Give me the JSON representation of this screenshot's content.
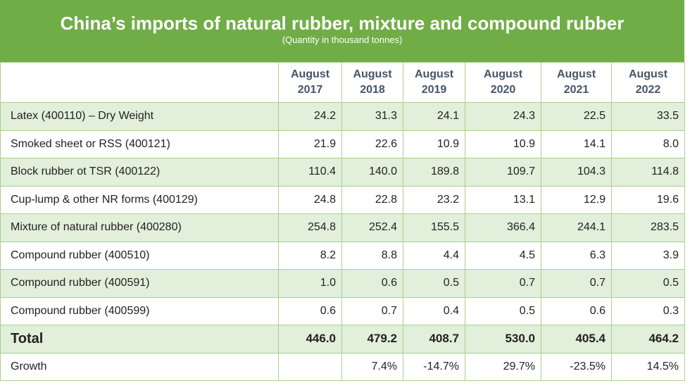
{
  "header": {
    "title": "China’s imports of natural rubber, mixture and compound rubber",
    "subtitle": "(Quantity in thousand tonnes)"
  },
  "table": {
    "columns": [
      "August 2017",
      "August 2018",
      "August 2019",
      "August 2020",
      "August 2021",
      "August 2022"
    ],
    "rows": [
      {
        "label": "Latex (400110) – Dry Weight",
        "cells": [
          "24.2",
          "31.3",
          "24.1",
          "24.3",
          "22.5",
          "33.5"
        ]
      },
      {
        "label": "Smoked sheet or RSS (400121)",
        "cells": [
          "21.9",
          "22.6",
          "10.9",
          "10.9",
          "14.1",
          "8.0"
        ]
      },
      {
        "label": "Block rubber ot TSR (400122)",
        "cells": [
          "110.4",
          "140.0",
          "189.8",
          "109.7",
          "104.3",
          "114.8"
        ]
      },
      {
        "label": "Cup-lump & other NR forms (400129)",
        "cells": [
          "24.8",
          "22.8",
          "23.2",
          "13.1",
          "12.9",
          "19.6"
        ]
      },
      {
        "label": "Mixture of natural rubber (400280)",
        "cells": [
          "254.8",
          "252.4",
          "155.5",
          "366.4",
          "244.1",
          "283.5"
        ]
      },
      {
        "label": "Compound rubber (400510)",
        "cells": [
          "8.2",
          "8.8",
          "4.4",
          "4.5",
          "6.3",
          "3.9"
        ]
      },
      {
        "label": "Compound rubber (400591)",
        "cells": [
          "1.0",
          "0.6",
          "0.5",
          "0.7",
          "0.7",
          "0.5"
        ]
      },
      {
        "label": "Compound rubber (400599)",
        "cells": [
          "0.6",
          "0.7",
          "0.4",
          "0.5",
          "0.6",
          "0.3"
        ]
      },
      {
        "label": "Total",
        "cells": [
          "446.0",
          "479.2",
          "408.7",
          "530.0",
          "405.4",
          "464.2"
        ]
      },
      {
        "label": "Growth",
        "cells": [
          null,
          "7.4%",
          "-14.7%",
          "29.7%",
          "-23.5%",
          "14.5%"
        ]
      }
    ]
  }
}
